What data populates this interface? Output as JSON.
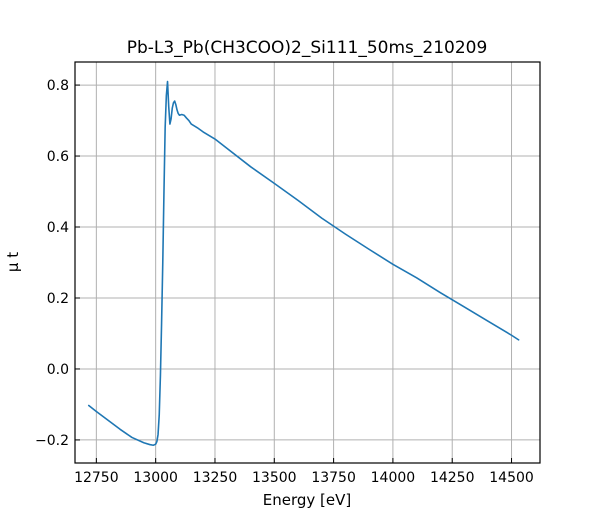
{
  "chart_data": {
    "type": "line",
    "title": "Pb-L3_Pb(CH3COO)2_Si111_50ms_210209",
    "xlabel": "Energy [eV]",
    "ylabel": "μ t",
    "xlim": [
      12660,
      14620
    ],
    "ylim": [
      -0.265,
      0.865
    ],
    "x_ticks": [
      12750,
      13000,
      13250,
      13500,
      13750,
      14000,
      14250,
      14500
    ],
    "y_ticks": [
      -0.2,
      0.0,
      0.2,
      0.4,
      0.6,
      0.8
    ],
    "x_tick_labels": [
      "12750",
      "13000",
      "13250",
      "13500",
      "13750",
      "14000",
      "14250",
      "14500"
    ],
    "y_tick_labels": [
      "−0.2",
      "0.0",
      "0.2",
      "0.4",
      "0.6",
      "0.8"
    ],
    "grid": true,
    "series": [
      {
        "color": "#1f77b4",
        "x": [
          12718,
          12750,
          12800,
          12850,
          12900,
          12950,
          12975,
          12990,
          13000,
          13005,
          13010,
          13015,
          13020,
          13025,
          13030,
          13035,
          13040,
          13045,
          13050,
          13055,
          13060,
          13065,
          13070,
          13075,
          13080,
          13085,
          13090,
          13095,
          13100,
          13110,
          13120,
          13130,
          13140,
          13150,
          13175,
          13200,
          13250,
          13300,
          13400,
          13500,
          13600,
          13700,
          13800,
          13900,
          14000,
          14100,
          14200,
          14300,
          14400,
          14500,
          14530
        ],
        "y": [
          -0.103,
          -0.12,
          -0.145,
          -0.17,
          -0.193,
          -0.208,
          -0.213,
          -0.215,
          -0.212,
          -0.205,
          -0.185,
          -0.13,
          -0.02,
          0.13,
          0.3,
          0.5,
          0.68,
          0.77,
          0.81,
          0.74,
          0.69,
          0.705,
          0.735,
          0.75,
          0.755,
          0.745,
          0.73,
          0.72,
          0.715,
          0.717,
          0.715,
          0.707,
          0.7,
          0.69,
          0.68,
          0.668,
          0.648,
          0.622,
          0.57,
          0.523,
          0.475,
          0.425,
          0.38,
          0.337,
          0.295,
          0.257,
          0.215,
          0.175,
          0.135,
          0.095,
          0.082
        ]
      }
    ]
  }
}
